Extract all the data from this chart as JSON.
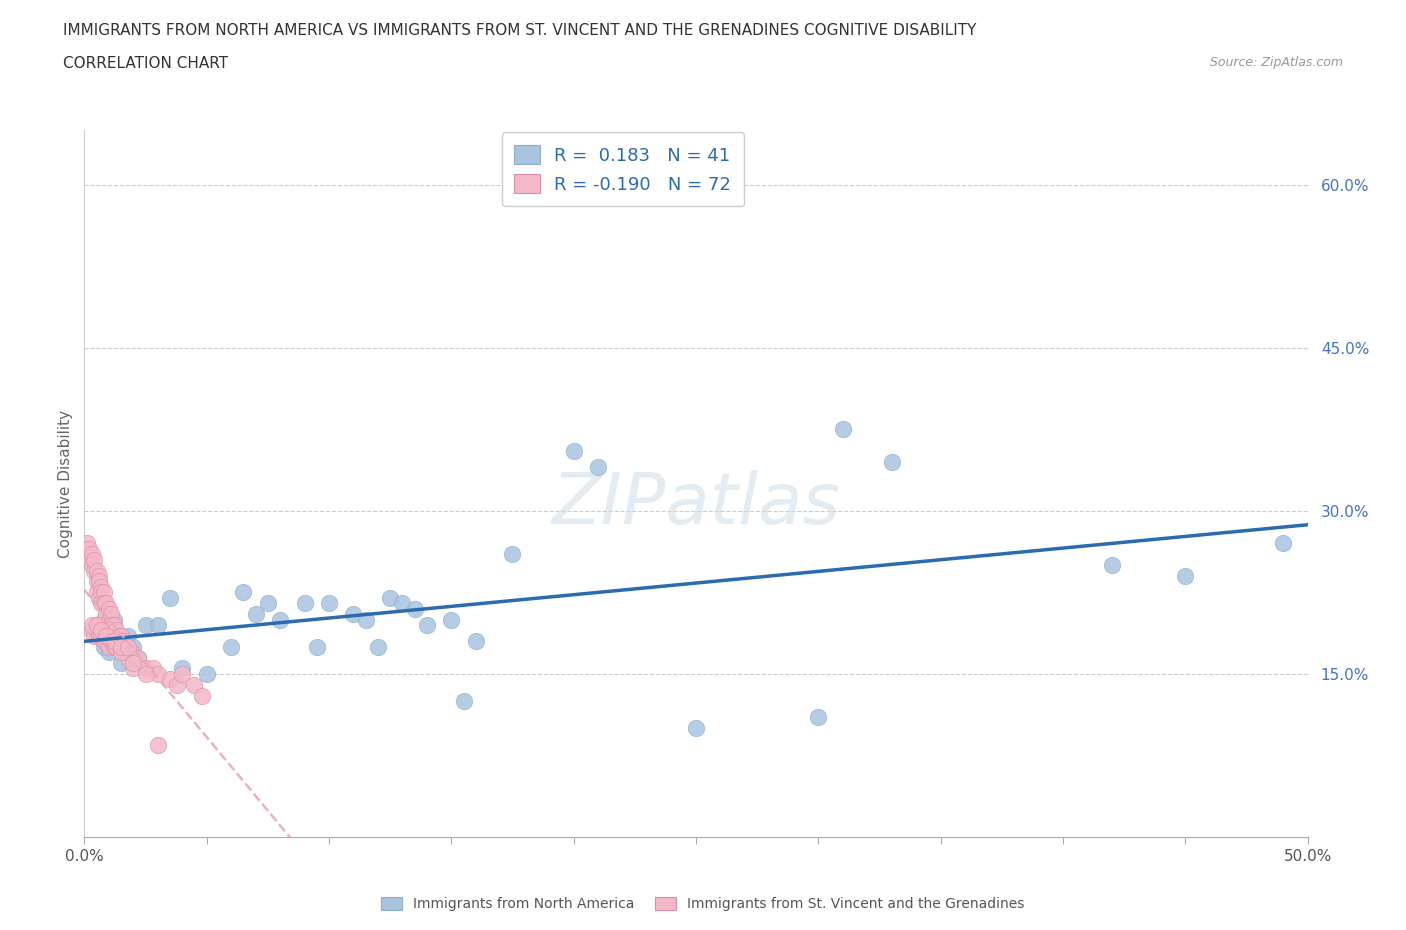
{
  "title_line1": "IMMIGRANTS FROM NORTH AMERICA VS IMMIGRANTS FROM ST. VINCENT AND THE GRENADINES COGNITIVE DISABILITY",
  "title_line2": "CORRELATION CHART",
  "source": "Source: ZipAtlas.com",
  "ylabel": "Cognitive Disability",
  "xlim": [
    0.0,
    0.5
  ],
  "ylim": [
    0.0,
    0.65
  ],
  "xtick_positions": [
    0.0,
    0.05,
    0.1,
    0.15,
    0.2,
    0.25,
    0.3,
    0.35,
    0.4,
    0.45,
    0.5
  ],
  "xtick_labels_show": {
    "0.0": "0.0%",
    "0.5": "50.0%"
  },
  "ytick_positions": [
    0.15,
    0.3,
    0.45,
    0.6
  ],
  "right_ytick_labels": [
    "15.0%",
    "30.0%",
    "45.0%",
    "60.0%"
  ],
  "R_blue": 0.183,
  "N_blue": 41,
  "R_pink": -0.19,
  "N_pink": 72,
  "blue_color": "#aac4e0",
  "pink_color": "#f4b8c8",
  "trend_blue_color": "#2b6cb0",
  "trend_pink_color": "#e8aabb",
  "watermark": "ZIPatlas",
  "blue_points_x": [
    0.005,
    0.008,
    0.01,
    0.012,
    0.015,
    0.018,
    0.02,
    0.022,
    0.025,
    0.03,
    0.035,
    0.04,
    0.05,
    0.06,
    0.065,
    0.07,
    0.075,
    0.08,
    0.09,
    0.095,
    0.1,
    0.11,
    0.115,
    0.12,
    0.125,
    0.13,
    0.135,
    0.14,
    0.15,
    0.155,
    0.16,
    0.175,
    0.2,
    0.21,
    0.25,
    0.3,
    0.31,
    0.33,
    0.42,
    0.45,
    0.49
  ],
  "blue_points_y": [
    0.195,
    0.175,
    0.17,
    0.2,
    0.16,
    0.185,
    0.175,
    0.165,
    0.195,
    0.195,
    0.22,
    0.155,
    0.15,
    0.175,
    0.225,
    0.205,
    0.215,
    0.2,
    0.215,
    0.175,
    0.215,
    0.205,
    0.2,
    0.175,
    0.22,
    0.215,
    0.21,
    0.195,
    0.2,
    0.125,
    0.18,
    0.26,
    0.355,
    0.34,
    0.1,
    0.11,
    0.375,
    0.345,
    0.25,
    0.24,
    0.27
  ],
  "pink_points_x": [
    0.001,
    0.002,
    0.002,
    0.003,
    0.003,
    0.004,
    0.004,
    0.005,
    0.005,
    0.005,
    0.006,
    0.006,
    0.006,
    0.007,
    0.007,
    0.007,
    0.008,
    0.008,
    0.008,
    0.009,
    0.009,
    0.01,
    0.01,
    0.01,
    0.011,
    0.011,
    0.012,
    0.012,
    0.013,
    0.013,
    0.014,
    0.014,
    0.015,
    0.015,
    0.016,
    0.016,
    0.017,
    0.018,
    0.019,
    0.02,
    0.02,
    0.022,
    0.025,
    0.028,
    0.03,
    0.035,
    0.038,
    0.04,
    0.045,
    0.048,
    0.003,
    0.004,
    0.005,
    0.006,
    0.007,
    0.008,
    0.009,
    0.01,
    0.011,
    0.012,
    0.013,
    0.015,
    0.02,
    0.025,
    0.003,
    0.005,
    0.007,
    0.009,
    0.012,
    0.015,
    0.018,
    0.03
  ],
  "pink_points_y": [
    0.27,
    0.265,
    0.255,
    0.26,
    0.25,
    0.245,
    0.255,
    0.245,
    0.235,
    0.225,
    0.24,
    0.235,
    0.22,
    0.23,
    0.225,
    0.215,
    0.225,
    0.215,
    0.2,
    0.215,
    0.205,
    0.21,
    0.2,
    0.19,
    0.205,
    0.195,
    0.195,
    0.185,
    0.19,
    0.18,
    0.185,
    0.175,
    0.185,
    0.175,
    0.18,
    0.17,
    0.175,
    0.165,
    0.17,
    0.165,
    0.155,
    0.165,
    0.155,
    0.155,
    0.15,
    0.145,
    0.14,
    0.15,
    0.14,
    0.13,
    0.19,
    0.185,
    0.19,
    0.185,
    0.185,
    0.18,
    0.18,
    0.175,
    0.18,
    0.175,
    0.175,
    0.17,
    0.16,
    0.15,
    0.195,
    0.195,
    0.19,
    0.185,
    0.18,
    0.175,
    0.175,
    0.085
  ],
  "grid_color": "#cccccc",
  "background_color": "#ffffff",
  "title_color": "#333333",
  "axis_label_color": "#666666",
  "tick_color_right": "#4472c4",
  "tick_color_bottom": "#555555"
}
